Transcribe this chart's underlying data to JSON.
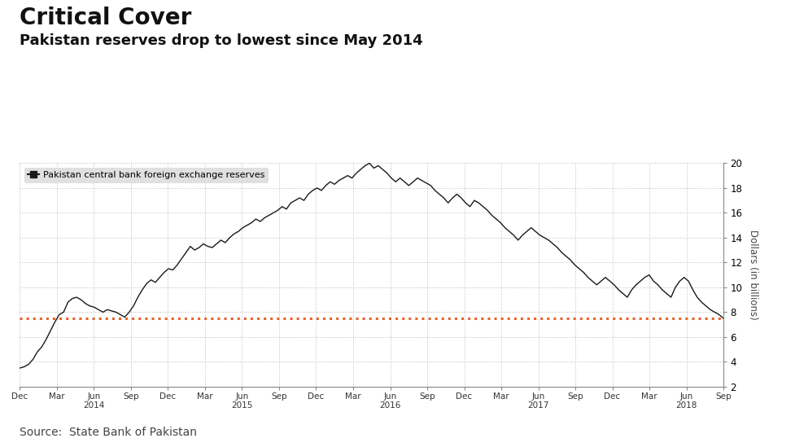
{
  "title": "Critical Cover",
  "subtitle": "Pakistan reserves drop to lowest since May 2014",
  "source": "Source:  State Bank of Pakistan",
  "legend_label": "Pakistan central bank foreign exchange reserves",
  "ylabel": "Dollars (in billions)",
  "ylim": [
    2,
    20
  ],
  "yticks": [
    2,
    4,
    6,
    8,
    10,
    12,
    14,
    16,
    18,
    20
  ],
  "dashed_line_y": 7.5,
  "dashed_line_color": "#E8622A",
  "line_color": "#1a1a1a",
  "background_color": "#ffffff",
  "grid_color": "#bbbbbb",
  "title_fontsize": 20,
  "subtitle_fontsize": 13,
  "source_fontsize": 10,
  "xtick_labels": [
    "Dec",
    "Mar",
    "Jun",
    "Sep",
    "Dec",
    "Mar",
    "Jun",
    "Sep",
    "Dec",
    "Mar",
    "Jun",
    "Sep",
    "Dec",
    "Mar",
    "Jun",
    "Sep",
    "Dec",
    "Mar",
    "Jun",
    "Sep"
  ],
  "xtick_year_labels": [
    "",
    "",
    "2014",
    "",
    "",
    "",
    "2015",
    "",
    "",
    "",
    "2016",
    "",
    "",
    "",
    "2017",
    "",
    "",
    "",
    "2018",
    ""
  ],
  "series": [
    3.5,
    3.6,
    3.8,
    4.2,
    4.8,
    5.2,
    5.8,
    6.5,
    7.2,
    7.8,
    8.0,
    8.8,
    9.1,
    9.2,
    9.0,
    8.7,
    8.5,
    8.4,
    8.2,
    8.0,
    8.2,
    8.1,
    8.0,
    7.8,
    7.6,
    8.0,
    8.5,
    9.2,
    9.8,
    10.3,
    10.6,
    10.4,
    10.8,
    11.2,
    11.5,
    11.4,
    11.8,
    12.3,
    12.8,
    13.3,
    13.0,
    13.2,
    13.5,
    13.3,
    13.2,
    13.5,
    13.8,
    13.6,
    14.0,
    14.3,
    14.5,
    14.8,
    15.0,
    15.2,
    15.5,
    15.3,
    15.6,
    15.8,
    16.0,
    16.2,
    16.5,
    16.3,
    16.8,
    17.0,
    17.2,
    17.0,
    17.5,
    17.8,
    18.0,
    17.8,
    18.2,
    18.5,
    18.3,
    18.6,
    18.8,
    19.0,
    18.8,
    19.2,
    19.5,
    19.8,
    20.0,
    19.6,
    19.8,
    19.5,
    19.2,
    18.8,
    18.5,
    18.8,
    18.5,
    18.2,
    18.5,
    18.8,
    18.6,
    18.4,
    18.2,
    17.8,
    17.5,
    17.2,
    16.8,
    17.2,
    17.5,
    17.2,
    16.8,
    16.5,
    17.0,
    16.8,
    16.5,
    16.2,
    15.8,
    15.5,
    15.2,
    14.8,
    14.5,
    14.2,
    13.8,
    14.2,
    14.5,
    14.8,
    14.5,
    14.2,
    14.0,
    13.8,
    13.5,
    13.2,
    12.8,
    12.5,
    12.2,
    11.8,
    11.5,
    11.2,
    10.8,
    10.5,
    10.2,
    10.5,
    10.8,
    10.5,
    10.2,
    9.8,
    9.5,
    9.2,
    9.8,
    10.2,
    10.5,
    10.8,
    11.0,
    10.5,
    10.2,
    9.8,
    9.5,
    9.2,
    10.0,
    10.5,
    10.8,
    10.5,
    9.8,
    9.2,
    8.8,
    8.5,
    8.2,
    8.0,
    7.8,
    7.5
  ]
}
